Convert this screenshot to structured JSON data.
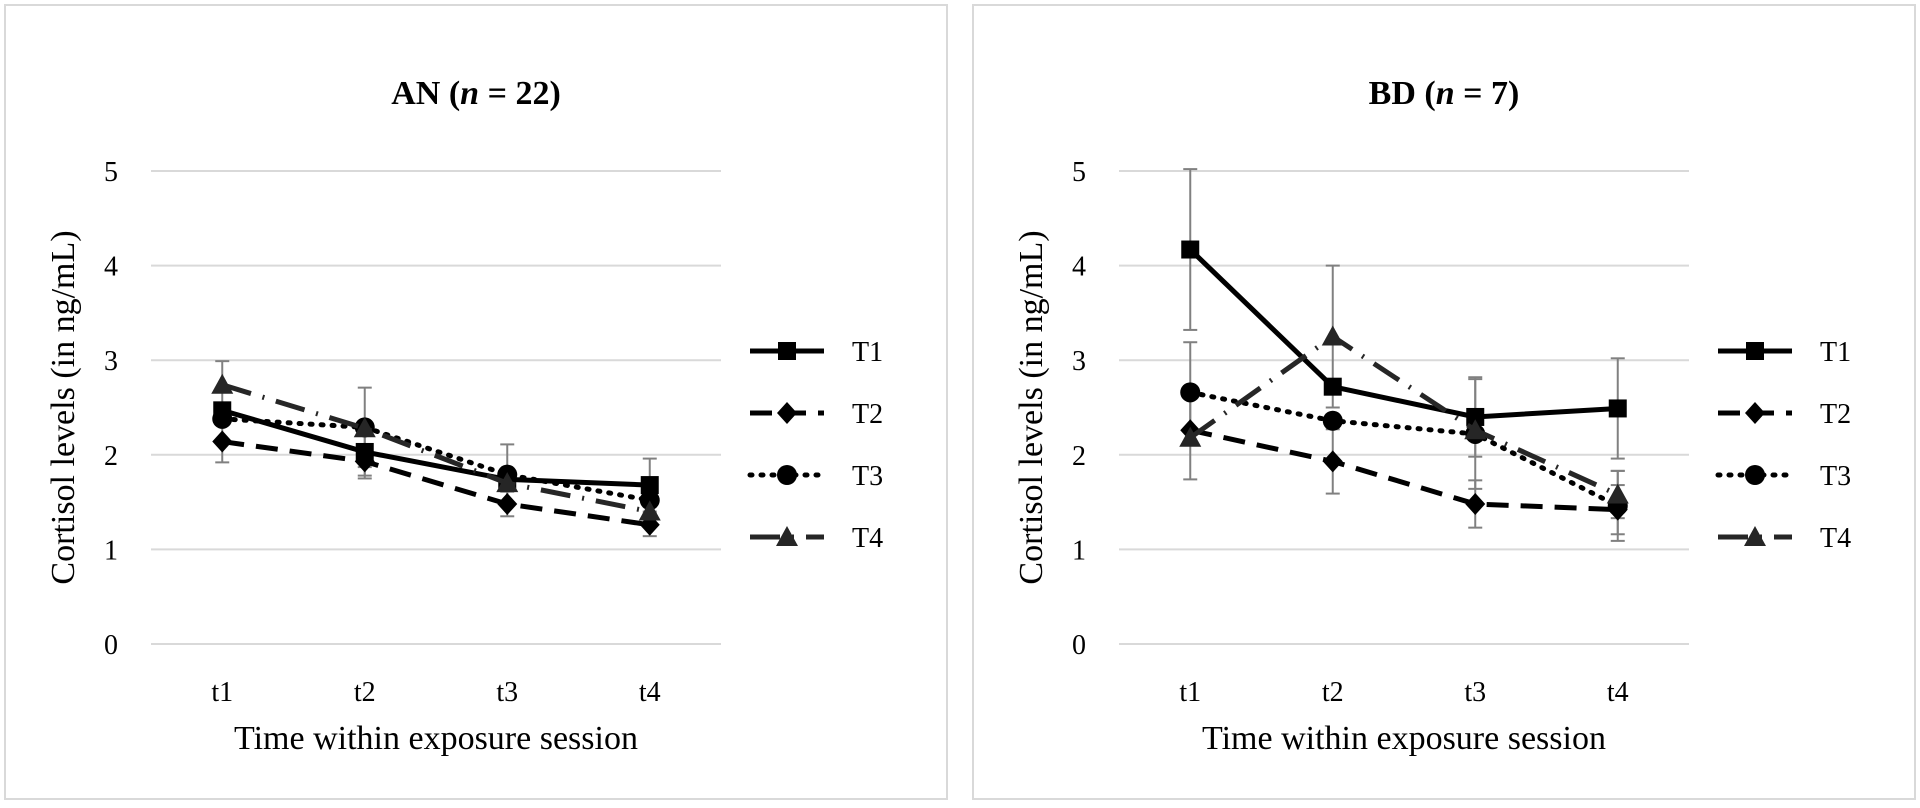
{
  "colors": {
    "grid": "#d9d9d9",
    "axis": "#d9d9d9",
    "series": "#000000",
    "series_t4": "#262626",
    "errorbar": "#808080",
    "frame": "#d9d9d9"
  },
  "chart_data": [
    {
      "type": "line",
      "title_prefix": "AN (",
      "title_n": "n",
      "title_suffix": " = 22)",
      "xlabel": "Time within exposure session",
      "ylabel": "Cortisol levels (in ng/mL)",
      "categories": [
        "t1",
        "t2",
        "t3",
        "t4"
      ],
      "ylim": [
        0,
        5
      ],
      "yticks": [
        "0",
        "1",
        "2",
        "3",
        "4",
        "5"
      ],
      "grid": true,
      "legend": "right",
      "series": [
        {
          "name": "T1",
          "marker": "square",
          "dash": "solid",
          "values": [
            2.47,
            2.03,
            1.74,
            1.68
          ],
          "err": [
            0.0,
            0.25,
            0.0,
            0.28
          ]
        },
        {
          "name": "T2",
          "marker": "diamond",
          "dash": "dashed",
          "values": [
            2.14,
            1.93,
            1.48,
            1.26
          ],
          "err": [
            0.22,
            0.18,
            0.13,
            0.12
          ]
        },
        {
          "name": "T3",
          "marker": "circle",
          "dash": "dotted",
          "values": [
            2.38,
            2.29,
            1.79,
            1.52
          ],
          "err": [
            0.0,
            0.42,
            0.32,
            0.0
          ]
        },
        {
          "name": "T4",
          "marker": "triangle",
          "dash": "longdash",
          "values": [
            2.74,
            2.28,
            1.7,
            1.4
          ],
          "err": [
            0.25,
            0.0,
            0.0,
            0.0
          ]
        }
      ]
    },
    {
      "type": "line",
      "title_prefix": "BD (",
      "title_n": "n",
      "title_suffix": " = 7)",
      "xlabel": "Time within exposure session",
      "ylabel": "Cortisol levels (in ng/mL)",
      "categories": [
        "t1",
        "t2",
        "t3",
        "t4"
      ],
      "ylim": [
        0,
        5
      ],
      "yticks": [
        "0",
        "1",
        "2",
        "3",
        "4",
        "5"
      ],
      "grid": true,
      "legend": "right",
      "series": [
        {
          "name": "T1",
          "marker": "square",
          "dash": "solid",
          "values": [
            4.17,
            2.72,
            2.4,
            2.49
          ],
          "err": [
            0.85,
            0.0,
            0.42,
            0.53
          ]
        },
        {
          "name": "T2",
          "marker": "diamond",
          "dash": "dashed",
          "values": [
            2.26,
            1.93,
            1.48,
            1.42
          ],
          "err": [
            0.0,
            0.34,
            0.25,
            0.26
          ]
        },
        {
          "name": "T3",
          "marker": "circle",
          "dash": "dotted",
          "values": [
            2.66,
            2.36,
            2.22,
            1.46
          ],
          "err": [
            0.53,
            0.0,
            0.58,
            0.37
          ]
        },
        {
          "name": "T4",
          "marker": "triangle",
          "dash": "longdash",
          "values": [
            2.18,
            3.25,
            2.26,
            1.58
          ],
          "err": [
            0.44,
            0.75,
            0.0,
            0.25
          ]
        }
      ]
    }
  ]
}
